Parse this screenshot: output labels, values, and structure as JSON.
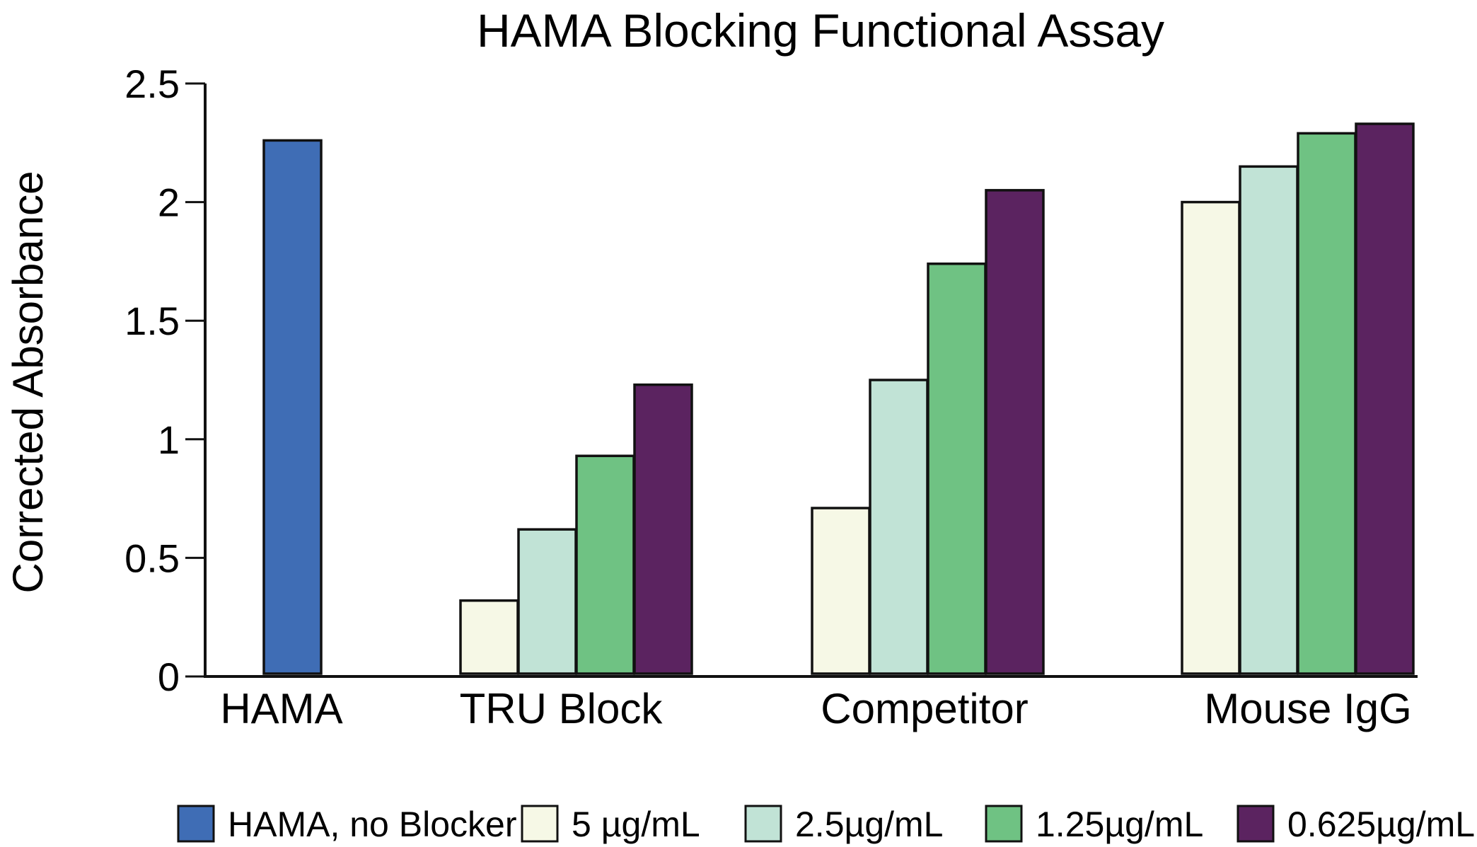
{
  "chart_data": {
    "type": "bar",
    "title": "HAMA Blocking Functional Assay",
    "xlabel": "",
    "ylabel": "Corrected Absorbance",
    "ylim": [
      0,
      2.5
    ],
    "yticks": [
      "0",
      "0.5",
      "1",
      "1.5",
      "2",
      "2.5"
    ],
    "categories": [
      "HAMA",
      "TRU Block",
      "Competitor",
      "Mouse IgG"
    ],
    "series": [
      {
        "name": "HAMA, no Blocker",
        "color": "#3f6db5",
        "values": [
          2.26,
          null,
          null,
          null
        ]
      },
      {
        "name": "5 µg/mL",
        "color": "#f6f8e6",
        "values": [
          null,
          0.32,
          0.71,
          2.0
        ]
      },
      {
        "name": "2.5µg/mL",
        "color": "#c1e3d6",
        "values": [
          null,
          0.62,
          1.25,
          2.15
        ]
      },
      {
        "name": "1.25µg/mL",
        "color": "#6fc283",
        "values": [
          null,
          0.93,
          1.74,
          2.29
        ]
      },
      {
        "name": "0.625µg/mL",
        "color": "#5b2360",
        "values": [
          null,
          1.23,
          2.05,
          2.33
        ]
      }
    ],
    "grid": false,
    "legend_position": "bottom"
  }
}
